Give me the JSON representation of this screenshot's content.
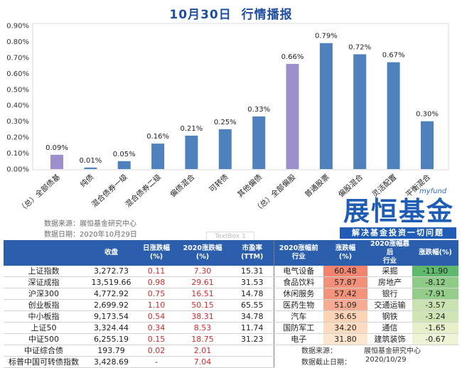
{
  "title": "10月30日  行情播报",
  "chart_data": {
    "type": "bar",
    "categories": [
      "（总）全部债基",
      "纯债",
      "混合债券一级",
      "混合债券二级",
      "偏债混合",
      "可转债",
      "其他偏债",
      "（总）全部偏股",
      "普通股票",
      "偏股混合",
      "灵活配置",
      "平衡混合"
    ],
    "values": [
      0.09,
      0.01,
      0.05,
      0.16,
      0.21,
      0.25,
      0.33,
      0.66,
      0.79,
      0.72,
      0.67,
      0.3
    ],
    "data_labels": [
      "0.09%",
      "0.01%",
      "0.05%",
      "0.16%",
      "0.21%",
      "0.25%",
      "0.33%",
      "0.66%",
      "0.79%",
      "0.72%",
      "0.67%",
      "0.30%"
    ],
    "ylim": [
      0,
      0.9
    ],
    "y_tick_labels": [
      "0.00%",
      "0.10%",
      "0.20%",
      "0.30%",
      "0.40%",
      "0.50%",
      "0.60%",
      "0.70%",
      "0.80%",
      "0.90%"
    ],
    "bar_colors": [
      "#9d8fcb",
      "#4f81bd",
      "#4f81bd",
      "#4f81bd",
      "#4f81bd",
      "#4f81bd",
      "#4f81bd",
      "#9d8fcb",
      "#4f81bd",
      "#4f81bd",
      "#4f81bd",
      "#4f81bd"
    ],
    "grid": false,
    "legend": "none"
  },
  "source": {
    "line1": "数据来源：展恒基金研究中心",
    "line2": "数据日期：2020年10月29日"
  },
  "ghost_textbox": "TextBox 1",
  "logo": {
    "small": "myfund",
    "name": "展恒基金",
    "slogan": "解决基金投资一切问题"
  },
  "indices": {
    "headers": [
      "收盘",
      "日涨跌幅\n(%)",
      "2020涨跌幅\n(%)",
      "市盈率\n(TTM)"
    ],
    "rows": [
      {
        "name": "上证指数",
        "close": "3,272.73",
        "daily": "0.11",
        "ytd": "7.30",
        "pe": "15.31"
      },
      {
        "name": "深证成指",
        "close": "13,519.66",
        "daily": "0.98",
        "ytd": "29.61",
        "pe": "31.53"
      },
      {
        "name": "沪深300",
        "close": "4,772.92",
        "daily": "0.75",
        "ytd": "16.51",
        "pe": "14.78"
      },
      {
        "name": "创业板指",
        "close": "2,699.92",
        "daily": "1.10",
        "ytd": "50.15",
        "pe": "65.55"
      },
      {
        "name": "中小板指",
        "close": "9,173.54",
        "daily": "0.54",
        "ytd": "38.31",
        "pe": "34.78"
      },
      {
        "name": "上证50",
        "close": "3,324.44",
        "daily": "0.34",
        "ytd": "8.53",
        "pe": "11.74"
      },
      {
        "name": "中证500",
        "close": "6,255.19",
        "daily": "0.15",
        "ytd": "18.75",
        "pe": "31.23"
      },
      {
        "name": "中证综合债",
        "close": "193.79",
        "daily": "0.02",
        "ytd": "2.01"
      },
      {
        "name": "标普中国可转债指数",
        "close": "3,428.69",
        "daily": "-",
        "ytd": "7.04"
      }
    ]
  },
  "industry": {
    "headers": [
      "2020涨幅前\n行业",
      "涨跌幅\n(%)",
      "2020涨幅靠后\n行业",
      "涨跌幅(%)"
    ],
    "top": [
      {
        "name": "电气设备",
        "change": "60.48",
        "color": "#f2846f"
      },
      {
        "name": "食品饮料",
        "change": "57.87",
        "color": "#f3907a"
      },
      {
        "name": "休闲服务",
        "change": "57.42",
        "color": "#f3937c"
      },
      {
        "name": "医药生物",
        "change": "51.09",
        "color": "#f5ac93"
      },
      {
        "name": "汽车",
        "change": "36.65",
        "color": "#fbd3b5"
      },
      {
        "name": "国防军工",
        "change": "34.20",
        "color": "#fcdcc0"
      },
      {
        "name": "电子",
        "change": "31.80",
        "color": "#fde6cd"
      }
    ],
    "bottom": [
      {
        "name": "采掘",
        "change": "-11.90",
        "color": "#5fb96d"
      },
      {
        "name": "房地产",
        "change": "-8.12",
        "color": "#8ecb86"
      },
      {
        "name": "银行",
        "change": "-7.91",
        "color": "#93cd89"
      },
      {
        "name": "交通运输",
        "change": "-3.57",
        "color": "#c9e2b0"
      },
      {
        "name": "钢铁",
        "change": "-3.24",
        "color": "#cfe5b6"
      },
      {
        "name": "通信",
        "change": "-1.65",
        "color": "#e5efca"
      },
      {
        "name": "建筑装饰",
        "change": "-0.67",
        "color": "#eef4d6"
      }
    ]
  },
  "footer": {
    "source_label": "数据来源：",
    "source_value": "展恒基金研究中心",
    "date_label": "数据截止日期：",
    "date_value": "2020/10/29"
  }
}
